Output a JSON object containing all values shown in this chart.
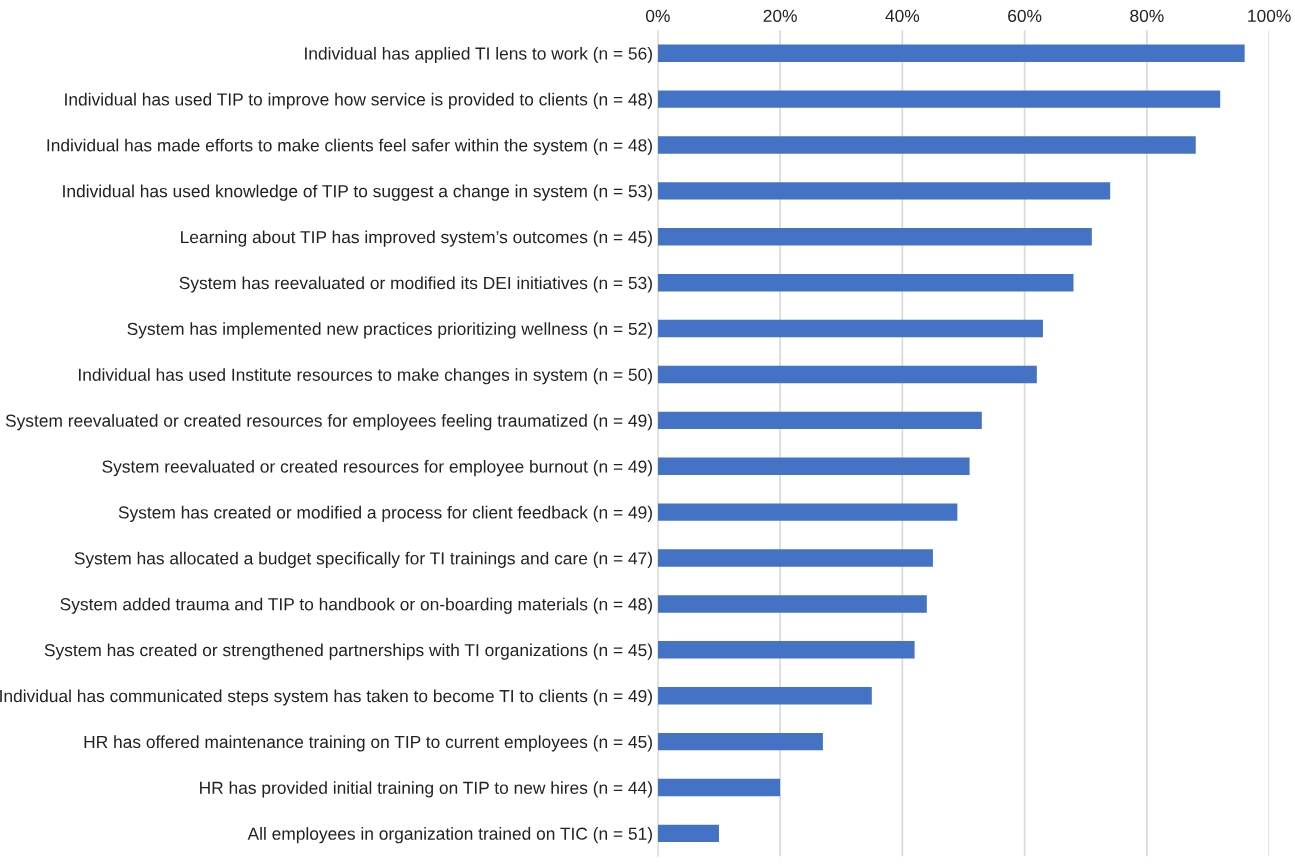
{
  "chart_data": {
    "type": "bar",
    "orientation": "horizontal",
    "categories": [
      "Individual has applied TI lens to work (n = 56)",
      "Individual has used TIP to improve how service is provided to clients (n = 48)",
      "Individual has made efforts to make clients feel safer within the system (n = 48)",
      "Individual has used knowledge of TIP to suggest a change in system (n = 53)",
      "Learning about TIP has improved system’s outcomes (n = 45)",
      "System has reevaluated or modified its DEI initiatives (n = 53)",
      "System has implemented new practices prioritizing wellness (n = 52)",
      "Individual has used Institute resources to make changes in system (n = 50)",
      "System reevaluated or created resources for employees feeling traumatized (n = 49)",
      "System reevaluated or created resources for employee burnout (n = 49)",
      "System has created or modified a process for client feedback (n = 49)",
      "System has allocated a budget specifically for TI trainings and care (n = 47)",
      "System added trauma and TIP to handbook or on-boarding materials (n = 48)",
      "System has created or strengthened partnerships with TI organizations (n = 45)",
      "Individual has communicated steps system has taken to become TI to clients (n = 49)",
      "HR has offered maintenance training on TIP to current employees (n = 45)",
      "HR has provided initial training on TIP to new hires (n = 44)",
      "All employees in organization trained on TIC (n = 51)"
    ],
    "values": [
      96,
      92,
      88,
      74,
      71,
      68,
      63,
      62,
      53,
      51,
      49,
      45,
      44,
      42,
      35,
      27,
      20,
      10
    ],
    "color": "#4472c4",
    "xlim": [
      0,
      100
    ],
    "xticks": [
      {
        "value": 0,
        "label": "0%"
      },
      {
        "value": 20,
        "label": "20%"
      },
      {
        "value": 40,
        "label": "40%"
      },
      {
        "value": 60,
        "label": "60%"
      },
      {
        "value": 80,
        "label": "80%"
      },
      {
        "value": 100,
        "label": "100%"
      }
    ],
    "grid": "x"
  }
}
